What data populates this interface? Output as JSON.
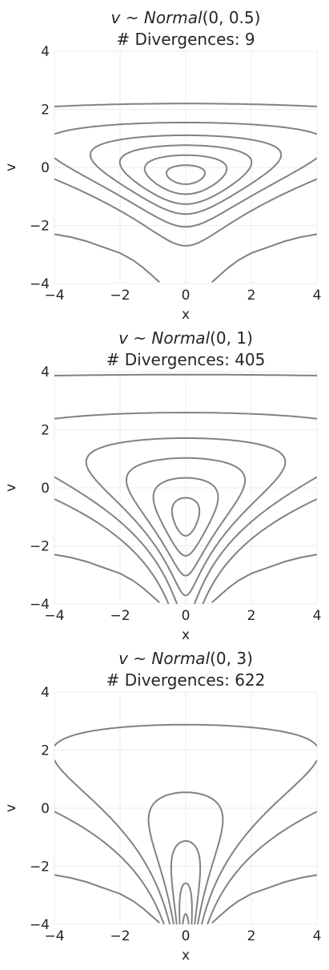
{
  "chart_data": [
    {
      "type": "line",
      "title": "v ~ Normal(0, 0.5)",
      "title_math": [
        "v",
        " ~ ",
        "Normal",
        "(0, 0.5)"
      ],
      "subtitle": "# Divergences: 9",
      "xlabel": "x",
      "ylabel": "v",
      "xlim": [
        -4,
        4
      ],
      "ylim": [
        -4,
        4
      ],
      "xticks": [
        -4,
        -2,
        0,
        2,
        4
      ],
      "yticks": [
        -4,
        -2,
        0,
        2,
        4
      ],
      "grid": true,
      "contour_scale": 0.5,
      "contour_levels": [
        0.05,
        0.2,
        0.4,
        0.6,
        0.8,
        0.95
      ],
      "series": [
        {
          "values": [
            [
              -4.0,
              -2.3
            ],
            [
              -3.5,
              -2.4
            ],
            [
              -3.0,
              -2.55
            ],
            [
              -2.5,
              -2.75
            ],
            [
              -2.0,
              -2.95
            ],
            [
              -1.6,
              -3.2
            ],
            [
              -1.3,
              -3.45
            ],
            [
              -1.0,
              -3.75
            ],
            [
              -0.8,
              -3.95
            ]
          ]
        },
        {
          "values": [
            [
              0.8,
              -3.95
            ],
            [
              1.0,
              -3.75
            ],
            [
              1.3,
              -3.45
            ],
            [
              1.6,
              -3.2
            ],
            [
              2.0,
              -2.95
            ],
            [
              2.5,
              -2.75
            ],
            [
              3.0,
              -2.55
            ],
            [
              3.5,
              -2.4
            ],
            [
              4.0,
              -2.3
            ]
          ]
        }
      ]
    },
    {
      "type": "line",
      "title": "v ~ Normal(0, 1)",
      "title_math": [
        "v",
        " ~ ",
        "Normal",
        "(0, 1)"
      ],
      "subtitle": "# Divergences: 405",
      "xlabel": "x",
      "ylabel": "v",
      "xlim": [
        -4,
        4
      ],
      "ylim": [
        -4,
        4
      ],
      "xticks": [
        -4,
        -2,
        0,
        2,
        4
      ],
      "yticks": [
        -4,
        -2,
        0,
        2,
        4
      ],
      "grid": true,
      "contour_scale": 1,
      "contour_levels": [
        0.05,
        0.2,
        0.4,
        0.6,
        0.8,
        0.95
      ],
      "series": [
        {
          "values": [
            [
              -4.0,
              -2.3
            ],
            [
              -3.5,
              -2.4
            ],
            [
              -3.0,
              -2.55
            ],
            [
              -2.5,
              -2.75
            ],
            [
              -2.0,
              -2.95
            ],
            [
              -1.6,
              -3.2
            ],
            [
              -1.3,
              -3.45
            ],
            [
              -1.0,
              -3.75
            ],
            [
              -0.8,
              -3.95
            ]
          ]
        },
        {
          "values": [
            [
              0.8,
              -3.95
            ],
            [
              1.0,
              -3.75
            ],
            [
              1.3,
              -3.45
            ],
            [
              1.6,
              -3.2
            ],
            [
              2.0,
              -2.95
            ],
            [
              2.5,
              -2.75
            ],
            [
              3.0,
              -2.55
            ],
            [
              3.5,
              -2.4
            ],
            [
              4.0,
              -2.3
            ]
          ]
        }
      ]
    },
    {
      "type": "line",
      "title": "v ~ Normal(0, 3)",
      "title_math": [
        "v",
        " ~ ",
        "Normal",
        "(0, 3)"
      ],
      "subtitle": "# Divergences: 622",
      "xlabel": "x",
      "ylabel": "v",
      "xlim": [
        -4,
        4
      ],
      "ylim": [
        -4,
        4
      ],
      "xticks": [
        -4,
        -2,
        0,
        2,
        4
      ],
      "yticks": [
        -4,
        -2,
        0,
        2,
        4
      ],
      "grid": true,
      "contour_scale": 3,
      "contour_levels": [
        0.05,
        0.2,
        0.4,
        0.6,
        0.8,
        0.95
      ],
      "series": [
        {
          "values": [
            [
              -4.0,
              -2.3
            ],
            [
              -3.5,
              -2.4
            ],
            [
              -3.0,
              -2.55
            ],
            [
              -2.5,
              -2.75
            ],
            [
              -2.0,
              -2.95
            ],
            [
              -1.6,
              -3.2
            ],
            [
              -1.3,
              -3.45
            ],
            [
              -1.0,
              -3.75
            ],
            [
              -0.8,
              -3.95
            ]
          ]
        },
        {
          "values": [
            [
              0.8,
              -3.95
            ],
            [
              1.0,
              -3.75
            ],
            [
              1.3,
              -3.45
            ],
            [
              1.6,
              -3.2
            ],
            [
              2.0,
              -2.95
            ],
            [
              2.5,
              -2.75
            ],
            [
              3.0,
              -2.55
            ],
            [
              3.5,
              -2.4
            ],
            [
              4.0,
              -2.3
            ]
          ]
        }
      ]
    }
  ]
}
